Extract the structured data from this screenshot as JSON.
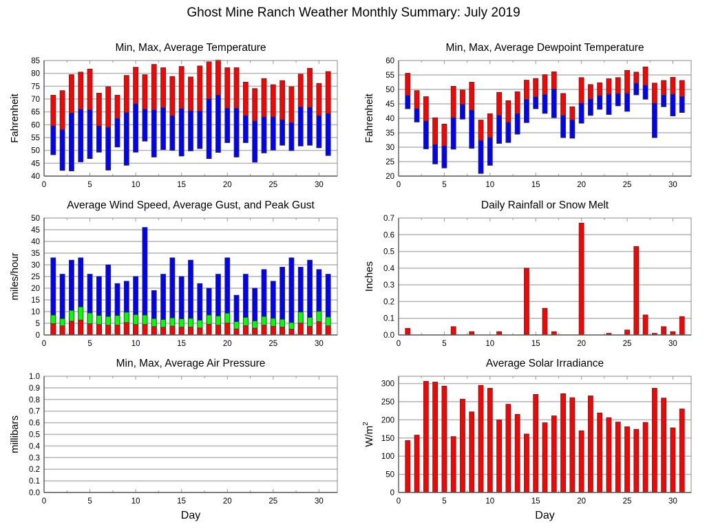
{
  "title": "Ghost Mine Ranch Weather Monthly Summary: July 2019",
  "colors": {
    "max": "#ff0000",
    "avg": "#0000ff",
    "gust": "#00ff00",
    "grid": "#b4b4b4",
    "axis": "#555555",
    "edge": "#333333"
  },
  "chart_data": [
    {
      "id": "temperature",
      "type": "bar",
      "subtype": "floating-range",
      "title": "Min, Max, Average Temperature",
      "xlabel": "",
      "ylabel": "Fahrenheit",
      "xlim": [
        0,
        32
      ],
      "ylim": [
        40,
        85
      ],
      "xticks": [
        0,
        5,
        10,
        15,
        20,
        25,
        30
      ],
      "yticks": [
        40,
        45,
        50,
        55,
        60,
        65,
        70,
        75,
        80,
        85
      ],
      "grid": true,
      "x": [
        1,
        2,
        3,
        4,
        5,
        6,
        7,
        8,
        9,
        10,
        11,
        12,
        13,
        14,
        15,
        16,
        17,
        18,
        19,
        20,
        21,
        22,
        23,
        24,
        25,
        26,
        27,
        28,
        29,
        30,
        31
      ],
      "series": [
        {
          "name": "Max",
          "values": [
            71.5,
            73.3,
            79.5,
            80.5,
            81.7,
            72.3,
            74.8,
            71.5,
            79.2,
            82.4,
            79.5,
            83.5,
            82.2,
            78.8,
            82.7,
            78.6,
            82.9,
            84.5,
            85.2,
            82.2,
            82.2,
            76.6,
            74.1,
            78.0,
            75.6,
            77.2,
            74.8,
            79.7,
            82.0,
            76.1,
            80.7
          ]
        },
        {
          "name": "Average",
          "values": [
            59.5,
            58.0,
            64.5,
            66.0,
            65.8,
            59.5,
            58.9,
            62.4,
            64.7,
            68.1,
            66.0,
            65.7,
            66.6,
            63.5,
            66.2,
            65.4,
            65.3,
            70.0,
            71.5,
            66.4,
            66.4,
            63.5,
            61.4,
            63.0,
            63.0,
            61.9,
            60.8,
            66.9,
            66.7,
            63.5,
            64.3
          ]
        },
        {
          "name": "Min",
          "values": [
            48.3,
            42.2,
            42.0,
            45.5,
            46.8,
            49.3,
            42.3,
            51.3,
            44.2,
            49.3,
            53.6,
            47.4,
            50.3,
            50.0,
            47.8,
            49.8,
            50.7,
            46.8,
            49.2,
            53.0,
            47.4,
            53.0,
            45.4,
            49.0,
            50.1,
            52.0,
            49.9,
            51.7,
            52.0,
            51.0,
            48.0
          ]
        }
      ]
    },
    {
      "id": "dewpoint",
      "type": "bar",
      "subtype": "floating-range",
      "title": "Min, Max, Average Dewpoint Temperature",
      "xlabel": "",
      "ylabel": "Fahrenheit",
      "xlim": [
        0,
        32
      ],
      "ylim": [
        20,
        60
      ],
      "xticks": [
        0,
        5,
        10,
        15,
        20,
        25,
        30
      ],
      "yticks": [
        20,
        25,
        30,
        35,
        40,
        45,
        50,
        55,
        60
      ],
      "grid": true,
      "x": [
        1,
        2,
        3,
        4,
        5,
        6,
        7,
        8,
        9,
        10,
        11,
        12,
        13,
        14,
        15,
        16,
        17,
        18,
        19,
        20,
        21,
        22,
        23,
        24,
        25,
        26,
        27,
        28,
        29,
        30,
        31
      ],
      "series": [
        {
          "name": "Max",
          "values": [
            55.6,
            49.6,
            47.5,
            40.2,
            38.0,
            51.1,
            49.8,
            52.5,
            39.4,
            41.6,
            49.0,
            46.1,
            49.2,
            53.2,
            53.8,
            55.1,
            56.1,
            48.6,
            44.0,
            54.1,
            51.7,
            52.3,
            53.7,
            54.1,
            56.6,
            56.0,
            57.8,
            52.2,
            53.1,
            54.2,
            53.1
          ]
        },
        {
          "name": "Average",
          "values": [
            47.9,
            43.3,
            39.0,
            30.9,
            30.4,
            40.2,
            44.8,
            42.8,
            32.3,
            33.3,
            41.0,
            38.6,
            41.6,
            46.5,
            47.4,
            48.2,
            50.1,
            40.9,
            39.4,
            45.2,
            46.6,
            47.8,
            48.3,
            48.5,
            48.6,
            52.1,
            51.4,
            45.2,
            48.0,
            48.3,
            47.5
          ]
        },
        {
          "name": "Min",
          "values": [
            43.3,
            38.7,
            29.4,
            24.2,
            22.8,
            29.3,
            39.7,
            29.6,
            20.9,
            23.7,
            31.3,
            31.6,
            34.5,
            38.5,
            43.3,
            41.7,
            40.2,
            33.3,
            33.1,
            38.3,
            41.0,
            43.1,
            41.3,
            44.3,
            42.4,
            48.1,
            46.6,
            33.3,
            44.0,
            40.8,
            42.0
          ]
        }
      ]
    },
    {
      "id": "wind",
      "type": "bar",
      "subtype": "overlaid",
      "title": "Average Wind Speed, Average Gust, and Peak Gust",
      "xlabel": "",
      "ylabel": "miles/hour",
      "xlim": [
        0,
        32
      ],
      "ylim": [
        0,
        50
      ],
      "xticks": [
        0,
        5,
        10,
        15,
        20,
        25,
        30
      ],
      "yticks": [
        0,
        5,
        10,
        15,
        20,
        25,
        30,
        35,
        40,
        45,
        50
      ],
      "grid": true,
      "x": [
        1,
        2,
        3,
        4,
        5,
        6,
        7,
        8,
        9,
        10,
        11,
        12,
        13,
        14,
        15,
        16,
        17,
        18,
        19,
        20,
        21,
        22,
        23,
        24,
        25,
        26,
        27,
        28,
        29,
        30,
        31
      ],
      "series": [
        {
          "name": "Peak Gust",
          "values": [
            33,
            26,
            32,
            33,
            26,
            25,
            30,
            22,
            23,
            25,
            46,
            19,
            26,
            33,
            25,
            32,
            22,
            20,
            26,
            33,
            17,
            26,
            20,
            28,
            23,
            29,
            33,
            29,
            32,
            28,
            26
          ]
        },
        {
          "name": "Average Gust",
          "values": [
            8.5,
            7.0,
            10.5,
            12.0,
            9.4,
            8.3,
            7.9,
            8.3,
            9.7,
            8.7,
            8.5,
            7.0,
            6.6,
            7.3,
            6.9,
            7.1,
            6.3,
            8.5,
            8.1,
            9.3,
            5.7,
            7.5,
            6.0,
            7.9,
            7.1,
            6.7,
            5.3,
            9.8,
            7.5,
            10.1,
            7.7
          ]
        },
        {
          "name": "Average Wind Speed",
          "values": [
            4.8,
            3.9,
            5.9,
            6.4,
            4.8,
            4.5,
            4.2,
            4.2,
            5.3,
            4.5,
            4.5,
            3.6,
            3.3,
            3.8,
            3.4,
            3.4,
            3.0,
            4.6,
            4.2,
            5.1,
            2.6,
            4.0,
            2.9,
            4.2,
            3.7,
            3.4,
            2.5,
            5.1,
            3.7,
            5.7,
            3.9
          ]
        }
      ]
    },
    {
      "id": "rainfall",
      "type": "bar",
      "title": "Daily Rainfall or Snow Melt",
      "xlabel": "",
      "ylabel": "Inches",
      "xlim": [
        0,
        32
      ],
      "ylim": [
        0,
        0.7
      ],
      "xticks": [
        0,
        5,
        10,
        15,
        20,
        25,
        30
      ],
      "yticks": [
        "0.0",
        "0.1",
        "0.2",
        "0.3",
        "0.4",
        "0.5",
        "0.6",
        "0.7"
      ],
      "grid": true,
      "x": [
        1,
        6,
        8,
        11,
        14,
        16,
        17,
        20,
        23,
        25,
        26,
        27,
        28,
        29,
        30,
        31
      ],
      "values": [
        0.04,
        0.05,
        0.02,
        0.02,
        0.4,
        0.16,
        0.02,
        0.67,
        0.01,
        0.03,
        0.53,
        0.12,
        0.01,
        0.05,
        0.02,
        0.11
      ]
    },
    {
      "id": "pressure",
      "type": "bar",
      "title": "Min, Max, Average Air Pressure",
      "xlabel": "Day",
      "ylabel": "millibars",
      "xlim": [
        0,
        32
      ],
      "ylim": [
        0,
        1
      ],
      "xticks": [
        0,
        5,
        10,
        15,
        20,
        25,
        30
      ],
      "yticks": [
        "0.0",
        "0.1",
        "0.2",
        "0.3",
        "0.4",
        "0.5",
        "0.6",
        "0.7",
        "0.8",
        "0.9",
        "1.0"
      ],
      "grid": true,
      "x": [],
      "values": []
    },
    {
      "id": "solar",
      "type": "bar",
      "title": "Average Solar Irradiance",
      "xlabel": "Day",
      "ylabel": "W/m",
      "ylabel_sup": "2",
      "xlim": [
        0,
        32
      ],
      "ylim": [
        0,
        320
      ],
      "xticks": [
        0,
        5,
        10,
        15,
        20,
        25,
        30
      ],
      "yticks": [
        0,
        50,
        100,
        150,
        200,
        250,
        300
      ],
      "grid": true,
      "x": [
        1,
        2,
        3,
        4,
        5,
        6,
        7,
        8,
        9,
        10,
        11,
        12,
        13,
        14,
        15,
        16,
        17,
        18,
        19,
        20,
        21,
        22,
        23,
        24,
        25,
        26,
        27,
        28,
        29,
        30,
        31
      ],
      "values": [
        143,
        158,
        306,
        304,
        293,
        154,
        257,
        222,
        295,
        287,
        200,
        243,
        215,
        161,
        270,
        192,
        211,
        272,
        261,
        170,
        266,
        219,
        206,
        194,
        181,
        174,
        193,
        287,
        260,
        178,
        230
      ]
    }
  ]
}
